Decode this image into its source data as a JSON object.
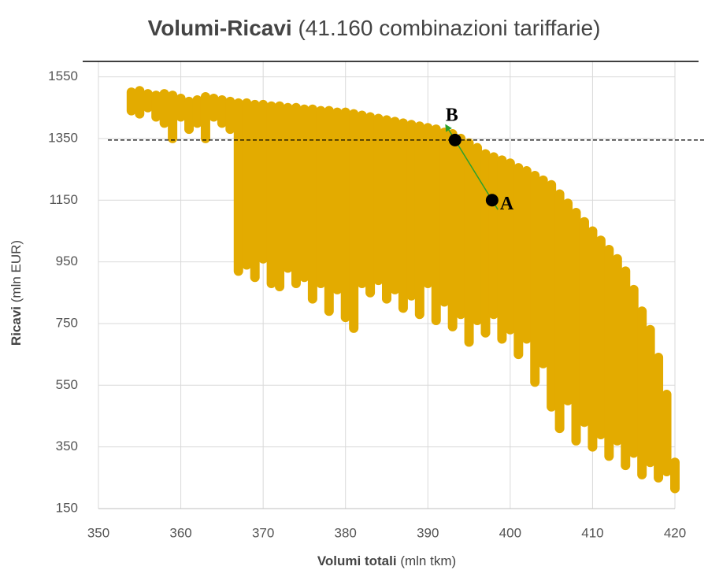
{
  "chart_data": {
    "type": "scatter",
    "title": {
      "main": "Volumi-Ricavi",
      "detail": "(41.160 combinazioni tariffarie)"
    },
    "x_label": {
      "main": "Volumi totali",
      "detail": "(mln tkm)"
    },
    "y_label": {
      "main": "Ricavi",
      "detail": "(mln EUR)"
    },
    "color": "#e3ab00",
    "x": [
      354,
      355,
      356,
      357,
      358,
      359,
      360,
      361,
      362,
      363,
      364,
      365,
      366,
      367,
      368,
      369,
      370,
      371,
      372,
      373,
      374,
      375,
      376,
      377,
      378,
      379,
      380,
      381,
      382,
      383,
      384,
      385,
      386,
      387,
      388,
      389,
      390,
      391,
      392,
      393,
      394,
      395,
      396,
      397,
      398,
      399,
      400,
      401,
      402,
      403,
      404,
      405,
      406,
      407,
      408,
      409,
      410,
      411,
      412,
      413,
      414,
      415,
      416,
      417,
      418,
      419,
      420
    ],
    "high": [
      1500,
      1505,
      1495,
      1490,
      1495,
      1490,
      1480,
      1470,
      1475,
      1485,
      1480,
      1475,
      1470,
      1465,
      1465,
      1460,
      1460,
      1455,
      1455,
      1450,
      1450,
      1445,
      1445,
      1440,
      1440,
      1435,
      1435,
      1430,
      1425,
      1420,
      1415,
      1410,
      1405,
      1400,
      1395,
      1390,
      1385,
      1380,
      1370,
      1365,
      1350,
      1335,
      1320,
      1300,
      1290,
      1280,
      1270,
      1255,
      1245,
      1230,
      1215,
      1200,
      1170,
      1140,
      1110,
      1080,
      1050,
      1020,
      990,
      960,
      920,
      860,
      790,
      730,
      640,
      520,
      300
    ],
    "low": [
      1440,
      1430,
      1450,
      1420,
      1400,
      1350,
      1420,
      1380,
      1400,
      1350,
      1420,
      1400,
      1380,
      920,
      940,
      900,
      960,
      880,
      870,
      930,
      880,
      900,
      830,
      880,
      790,
      860,
      770,
      735,
      880,
      850,
      890,
      830,
      860,
      800,
      840,
      780,
      880,
      760,
      820,
      740,
      780,
      690,
      760,
      720,
      780,
      700,
      730,
      650,
      700,
      560,
      620,
      480,
      410,
      500,
      370,
      430,
      350,
      390,
      320,
      370,
      290,
      330,
      260,
      300,
      250,
      270,
      215
    ],
    "points": [
      {
        "label": "A",
        "x": 397.8,
        "y": 1150
      },
      {
        "label": "B",
        "x": 393.3,
        "y": 1345
      }
    ],
    "reference_line": 1345,
    "xlim": [
      350,
      420
    ],
    "xticks": [
      350,
      360,
      370,
      380,
      390,
      400,
      410,
      420
    ],
    "ylim": [
      150,
      1600
    ],
    "yticks": [
      150,
      350,
      550,
      750,
      950,
      1150,
      1350,
      1550
    ],
    "grid": true
  }
}
